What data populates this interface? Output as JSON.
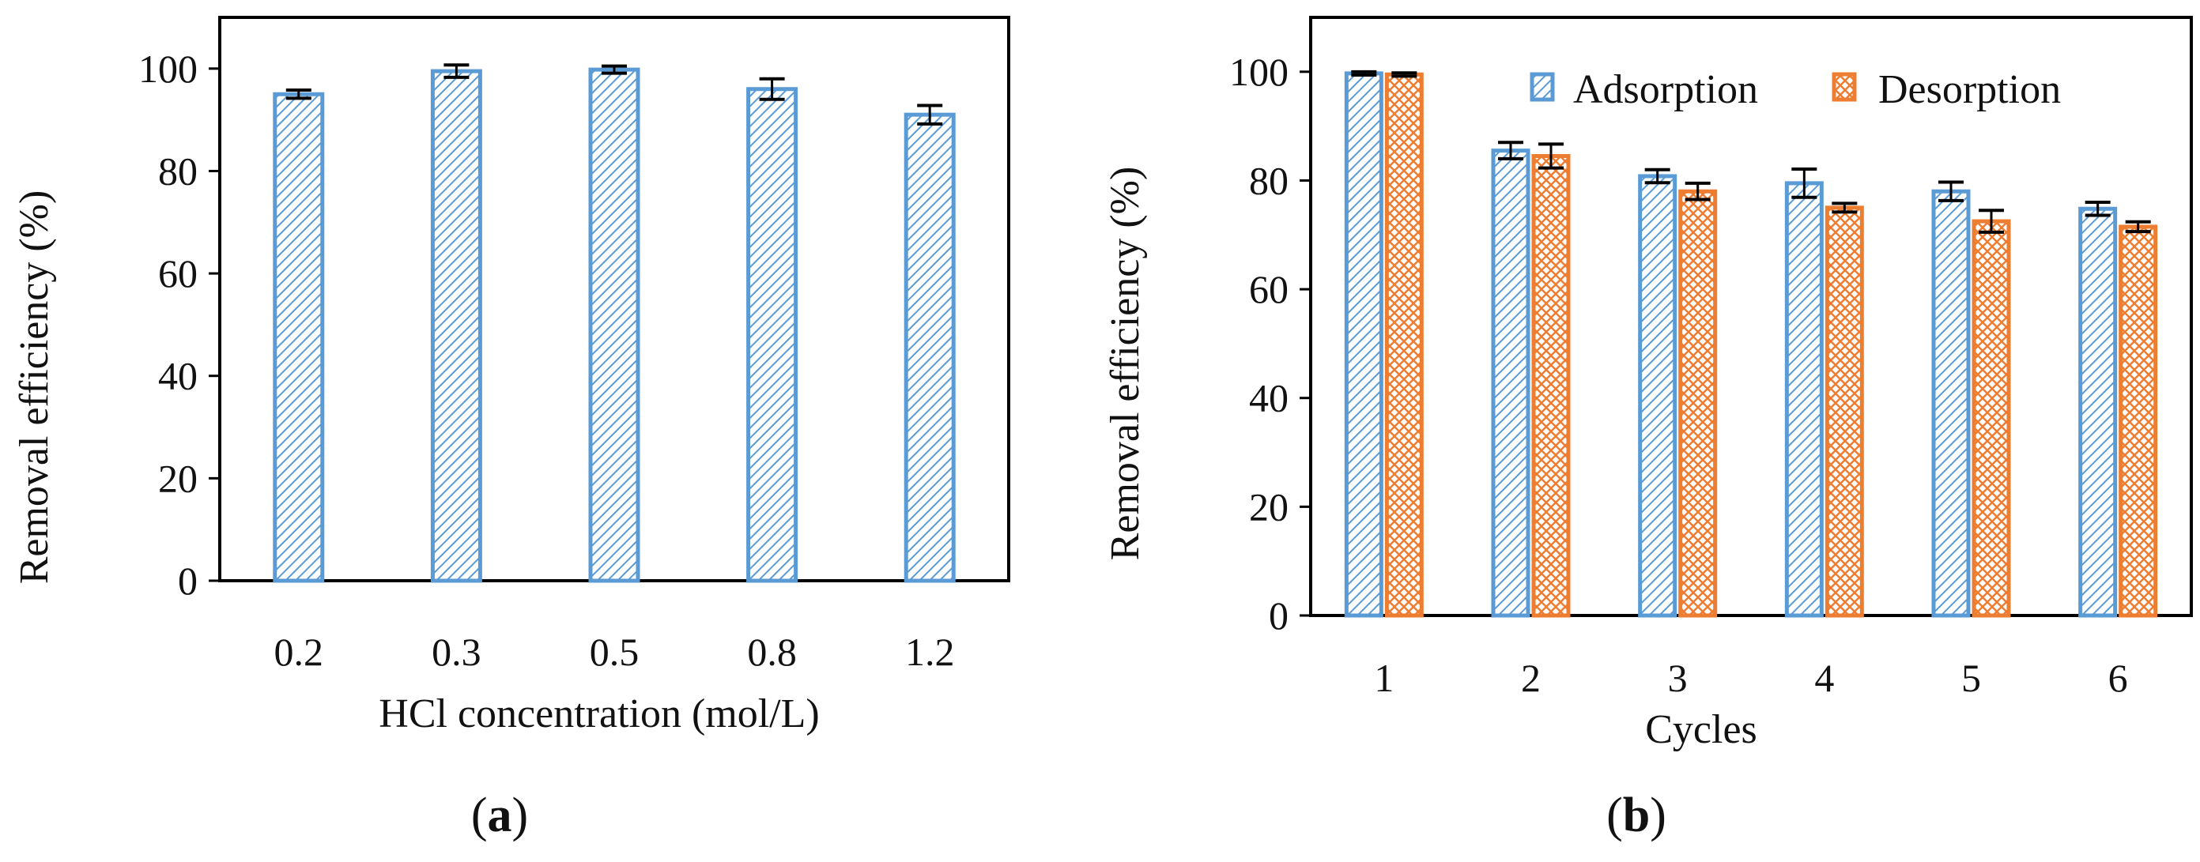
{
  "colors": {
    "adsorption": "#5b9bd5",
    "desorption": "#ed7d31",
    "axis": "#000000",
    "error": "#000000"
  },
  "chart_data": [
    {
      "type": "bar",
      "panel": "(a)",
      "panel_open": "(",
      "panel_letter": "a",
      "panel_close": ")",
      "categories": [
        "0.2",
        "0.3",
        "0.5",
        "0.8",
        "1.2"
      ],
      "series": [
        {
          "name": "Removal efficiency",
          "values": [
            95,
            99.5,
            99.8,
            96,
            91
          ],
          "errors": [
            0.8,
            1.2,
            0.7,
            2.0,
            1.8
          ]
        }
      ],
      "xlabel": "HCl concentration (mol/L)",
      "ylabel": "Removal efficiency (%)",
      "ylim": [
        0,
        110
      ],
      "yticks": [
        0,
        20,
        40,
        60,
        80,
        100
      ],
      "legend": null,
      "grid": false
    },
    {
      "type": "bar",
      "panel": "(b)",
      "panel_open": "(",
      "panel_letter": "b",
      "panel_close": ")",
      "categories": [
        "1",
        "2",
        "3",
        "4",
        "5",
        "6"
      ],
      "series": [
        {
          "name": "Adsorption",
          "values": [
            99.7,
            85.5,
            80.8,
            79.5,
            78,
            74.8
          ],
          "errors": [
            0.3,
            1.5,
            1.2,
            2.6,
            1.7,
            1.2
          ]
        },
        {
          "name": "Desorption",
          "values": [
            99.5,
            84.5,
            78,
            75,
            72.5,
            71.5
          ],
          "errors": [
            0.3,
            2.2,
            1.5,
            0.8,
            2.0,
            0.9
          ]
        }
      ],
      "xlabel": "Cycles",
      "ylabel": "Removal efficiency (%)",
      "ylim": [
        0,
        110
      ],
      "yticks": [
        0,
        20,
        40,
        60,
        80,
        100
      ],
      "legend": "top-right",
      "grid": false
    }
  ]
}
